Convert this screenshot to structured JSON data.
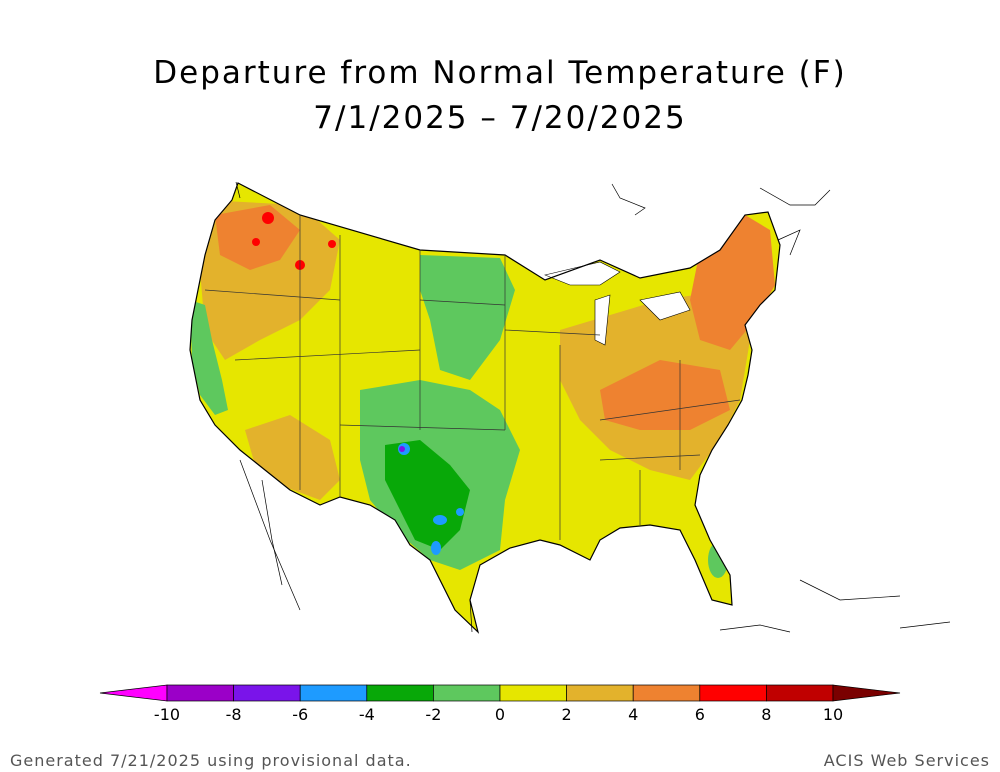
{
  "title": {
    "line1": "Departure from Normal Temperature (F)",
    "line2": "7/1/2025 – 7/20/2025"
  },
  "legend": {
    "bins": [
      {
        "from": -10,
        "to": -8,
        "color": "#9b00c8"
      },
      {
        "from": -8,
        "to": -6,
        "color": "#7a14ea"
      },
      {
        "from": -6,
        "to": -4,
        "color": "#1e9bff"
      },
      {
        "from": -4,
        "to": -2,
        "color": "#08a808"
      },
      {
        "from": -2,
        "to": 0,
        "color": "#5ec85e"
      },
      {
        "from": 0,
        "to": 2,
        "color": "#e6e600"
      },
      {
        "from": 2,
        "to": 4,
        "color": "#e3b22c"
      },
      {
        "from": 4,
        "to": 6,
        "color": "#ee8230"
      },
      {
        "from": 6,
        "to": 8,
        "color": "#ff0000"
      },
      {
        "from": 8,
        "to": 10,
        "color": "#c00000"
      }
    ],
    "below_color": "#ff00ff",
    "above_color": "#7a0000",
    "tick_labels": [
      "-10",
      "-8",
      "-6",
      "-4",
      "-2",
      "0",
      "2",
      "4",
      "6",
      "8",
      "10"
    ]
  },
  "footer": {
    "left": "Generated 7/21/2025 using provisional data.",
    "right": "ACIS Web Services"
  }
}
